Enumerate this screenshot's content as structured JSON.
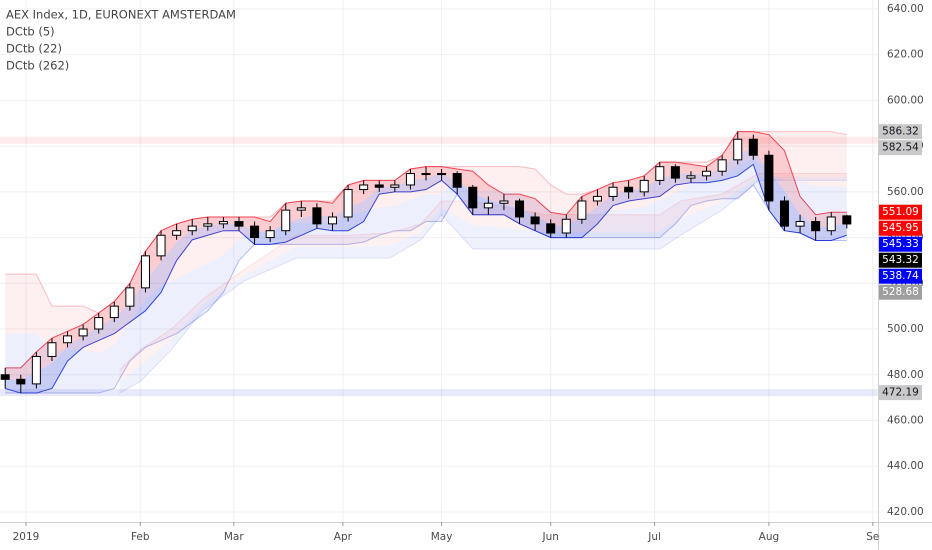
{
  "chart_data": {
    "type": "candlestick",
    "title": "AEX Index, 1D, EURONEXT AMSTERDAM",
    "x": [
      0,
      3,
      6,
      9,
      12,
      15,
      18,
      21,
      24,
      27,
      30,
      33,
      36,
      39,
      42,
      45,
      48,
      51,
      54,
      57,
      60,
      63,
      66,
      69,
      72,
      75,
      78,
      81,
      84,
      87,
      90,
      93,
      96,
      99,
      102,
      105,
      108,
      111,
      114,
      117,
      120,
      123,
      126,
      129,
      132,
      135,
      138,
      141,
      144,
      147,
      150,
      153,
      156,
      159,
      162
    ],
    "open": [
      480,
      478,
      476,
      488,
      494,
      497,
      500,
      505,
      510,
      518,
      532,
      541,
      543,
      545,
      546,
      547,
      545,
      540,
      543,
      552,
      553,
      546,
      549,
      561,
      563,
      562,
      563,
      568,
      568,
      568,
      562,
      553,
      555,
      556,
      549,
      546,
      542,
      548,
      556,
      558,
      562,
      560,
      565,
      571,
      566,
      567,
      569,
      574,
      583,
      576,
      556,
      545,
      547,
      543,
      549.5
    ],
    "high": [
      483,
      480,
      490,
      496,
      499,
      502,
      507,
      512,
      520,
      534,
      543,
      546,
      548,
      549,
      549,
      549,
      547,
      545,
      555,
      556,
      555,
      551,
      563,
      565,
      565,
      565,
      570,
      571,
      570,
      569,
      563,
      558,
      559,
      557,
      551,
      548,
      550,
      558,
      561,
      564,
      565,
      567,
      573,
      572,
      569,
      571,
      576,
      586.32,
      585,
      578,
      558,
      550,
      549,
      551.09,
      550
    ],
    "low": [
      474,
      472,
      474,
      486,
      492,
      495,
      498,
      503,
      508,
      516,
      530,
      539,
      541,
      543,
      544,
      543,
      537,
      538,
      541,
      549,
      544,
      543,
      547,
      559,
      560,
      560,
      561,
      565,
      565,
      559,
      550,
      550,
      552,
      546,
      543,
      540,
      540,
      546,
      554,
      556,
      557,
      558,
      563,
      564,
      564,
      565,
      567,
      572,
      574,
      552,
      543,
      542,
      538.74,
      541,
      544
    ],
    "close": [
      478,
      476,
      488,
      494,
      497,
      500,
      505,
      510,
      518,
      532,
      541,
      543,
      545,
      546,
      547,
      545,
      540,
      543,
      552,
      553,
      546,
      549,
      561,
      563,
      562,
      563,
      568,
      568,
      568,
      562,
      553,
      555,
      556,
      549,
      546,
      542,
      548,
      556,
      558,
      562,
      560,
      565,
      571,
      566,
      567,
      569,
      574,
      583,
      576,
      556,
      545,
      547,
      543,
      549,
      545.95
    ],
    "up_color": "#ffffff",
    "down_color": "#000000",
    "outline_color": "#000000",
    "indicators": [
      {
        "name": "DCtb (5)",
        "upper_color": "#f23645",
        "lower_color": "#1e33d6",
        "line_width": 1,
        "line_opacity": 0.9,
        "fill_opacity": 0.18,
        "upper": [
          483,
          483,
          490,
          496,
          499,
          502,
          507,
          512,
          520,
          534,
          543,
          546,
          548,
          549,
          549,
          549,
          549,
          547,
          555,
          556,
          556,
          555,
          563,
          565,
          565,
          565,
          570,
          571,
          571,
          570,
          569,
          563,
          559,
          559,
          557,
          551,
          550,
          558,
          561,
          564,
          565,
          567,
          573,
          573,
          572,
          571,
          576,
          586.32,
          586.32,
          585,
          578,
          558,
          550,
          551.09,
          551.09
        ],
        "lower": [
          474,
          472,
          472,
          474,
          486,
          492,
          495,
          498,
          503,
          508,
          516,
          530,
          539,
          541,
          543,
          543,
          537,
          537,
          538,
          541,
          544,
          543,
          543,
          547,
          559,
          560,
          560,
          561,
          565,
          559,
          550,
          550,
          550,
          546,
          543,
          540,
          540,
          540,
          546,
          554,
          556,
          557,
          558,
          563,
          564,
          564,
          565,
          567,
          572,
          552,
          543,
          542,
          538.74,
          538.74,
          541
        ]
      },
      {
        "name": "DCtb (22)",
        "upper_color": "#f23645",
        "lower_color": "#1e33d6",
        "line_width": 1,
        "line_opacity": 0.3,
        "fill_opacity": 0.08,
        "upper": [
          524,
          524,
          524,
          510,
          510,
          510,
          507,
          512,
          520,
          534,
          543,
          546,
          548,
          549,
          549,
          549,
          549,
          549,
          555,
          556,
          556,
          556,
          563,
          565,
          565,
          565,
          570,
          571,
          571,
          571,
          571,
          571,
          571,
          571,
          570,
          563,
          559,
          559,
          561,
          564,
          565,
          567,
          573,
          573,
          573,
          573,
          576,
          586.32,
          586.32,
          586.32,
          586.32,
          586.32,
          586.32,
          586.32,
          585
        ],
        "lower": [
          472,
          472,
          472,
          472,
          472,
          472,
          472,
          474,
          486,
          492,
          495,
          498,
          503,
          508,
          516,
          530,
          537,
          537,
          537,
          537,
          537,
          537,
          537,
          538,
          541,
          543,
          543,
          547,
          547,
          559,
          550,
          550,
          550,
          546,
          543,
          540,
          540,
          540,
          540,
          540,
          540,
          540,
          540,
          546,
          554,
          556,
          557,
          557,
          563,
          552,
          543,
          542,
          538.74,
          538.74,
          538.74
        ]
      },
      {
        "name": "DCtb (262)",
        "upper_color": "#f23645",
        "lower_color": "#1e33d6",
        "line_width": 7,
        "line_opacity": 0.1,
        "fill_opacity": 0,
        "x": [
          -1,
          168
        ],
        "upper": [
          582.54,
          582.54
        ],
        "lower": [
          472.19,
          472.19
        ]
      },
      {
        "upper_color": "#f23645",
        "lower_color": "#1e33d6",
        "line_width": 1,
        "line_opacity": 0.12,
        "fill_opacity": 0.07,
        "x": [
          22,
          26,
          32,
          38,
          46,
          56,
          66,
          74,
          80,
          84,
          90,
          104,
          126,
          130,
          138,
          145,
          148,
          162
        ],
        "upper": [
          482,
          491,
          500,
          513,
          526,
          541,
          541,
          542,
          546,
          556,
          556,
          550,
          550,
          556,
          559,
          568,
          568,
          568
        ],
        "lower": [
          472,
          477,
          491,
          508,
          521,
          531,
          531,
          531,
          539,
          550,
          535,
          535,
          535,
          541,
          552,
          565,
          565,
          565
        ]
      }
    ],
    "price_labels": [
      {
        "value": 586.32,
        "color": "#c9c9c9",
        "text_color": "#131722"
      },
      {
        "value": 582.54,
        "color": "#c9c9c9",
        "text_color": "#131722"
      },
      {
        "value": 551.09,
        "color": "#ff0000",
        "text_color": "#ffffff"
      },
      {
        "value": 545.95,
        "color": "#ff0000",
        "text_color": "#ffffff"
      },
      {
        "value": 545.33,
        "color": "#0000ff",
        "text_color": "#ffffff"
      },
      {
        "value": 543.32,
        "color": "#000000",
        "text_color": "#ffffff"
      },
      {
        "value": 538.74,
        "color": "#0000ff",
        "text_color": "#ffffff"
      },
      {
        "value": 528.68,
        "color": "#9e9e9e",
        "text_color": "#ffffff"
      },
      {
        "value": 472.19,
        "color": "#c9c9c9",
        "text_color": "#131722"
      }
    ],
    "ylim": [
      415.6,
      643.9
    ],
    "yticks": [
      {
        "value": 640,
        "label": "640.00"
      },
      {
        "value": 620,
        "label": "620.00"
      },
      {
        "value": 600,
        "label": "600.00"
      },
      {
        "value": 580,
        "label": "580.00"
      },
      {
        "value": 560,
        "label": "560.00"
      },
      {
        "value": 540,
        "label": "540.00"
      },
      {
        "value": 520,
        "label": "520.00"
      },
      {
        "value": 500,
        "label": "500.00"
      },
      {
        "value": 480,
        "label": "480.00"
      },
      {
        "value": 460,
        "label": "460.00"
      },
      {
        "value": 440,
        "label": "440.00"
      },
      {
        "value": 420,
        "label": "420.00"
      }
    ],
    "xlim": [
      -1,
      168
    ],
    "xticks": [
      {
        "value": 4,
        "label": "2019"
      },
      {
        "value": 26,
        "label": "Feb"
      },
      {
        "value": 44,
        "label": "Mar"
      },
      {
        "value": 65,
        "label": "Apr"
      },
      {
        "value": 84,
        "label": "May"
      },
      {
        "value": 105,
        "label": "Jun"
      },
      {
        "value": 125,
        "label": "Jul"
      },
      {
        "value": 147,
        "label": "Aug"
      },
      {
        "value": 167,
        "label": "Se"
      }
    ],
    "grid": true
  }
}
